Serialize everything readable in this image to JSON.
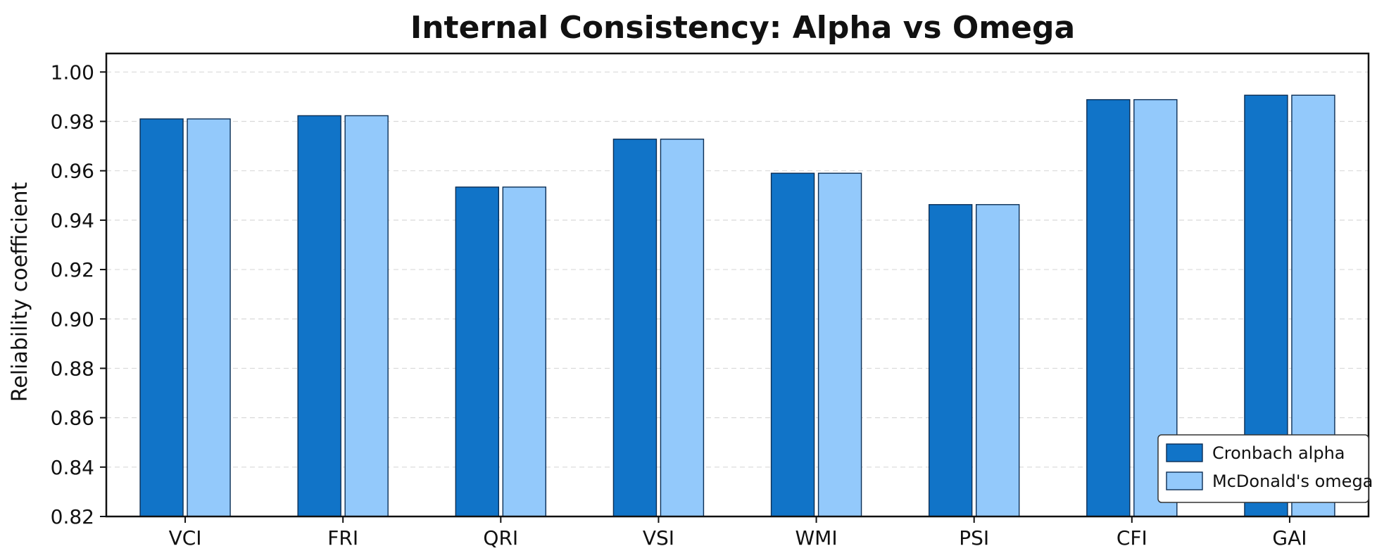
{
  "chart_data": {
    "type": "bar",
    "title": "Internal Consistency: Alpha vs Omega",
    "xlabel": "",
    "ylabel": "Reliability coefficient",
    "categories": [
      "VCI",
      "FRI",
      "QRI",
      "VSI",
      "WMI",
      "PSI",
      "CFI",
      "GAI"
    ],
    "series": [
      {
        "name": "Cronbach alpha",
        "color": "#1174c8",
        "values": [
          0.981,
          0.9823,
          0.9534,
          0.9728,
          0.959,
          0.9463,
          0.9888,
          0.9906
        ]
      },
      {
        "name": "McDonald's omega",
        "color": "#93c9fb",
        "values": [
          0.981,
          0.9823,
          0.9534,
          0.9728,
          0.959,
          0.9463,
          0.9888,
          0.9906
        ]
      }
    ],
    "ylim": [
      0.82,
      1.0075
    ],
    "yticks": [
      "0.82",
      "0.84",
      "0.86",
      "0.88",
      "0.90",
      "0.92",
      "0.94",
      "0.96",
      "0.98",
      "1.00"
    ],
    "grid": "horizontal-dashed",
    "legend_position": "lower-right"
  }
}
